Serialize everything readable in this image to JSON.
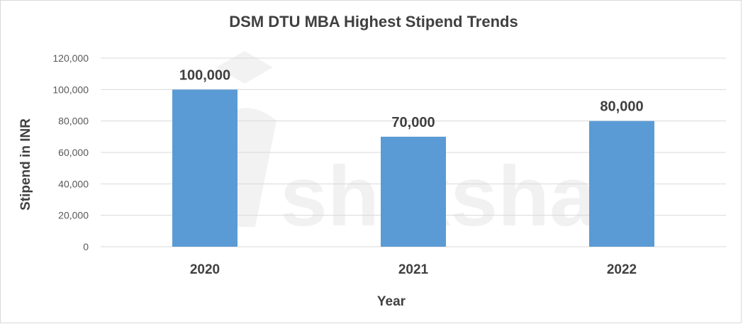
{
  "chart_data": {
    "type": "bar",
    "title": "DSM DTU MBA Highest Stipend Trends",
    "xlabel": "Year",
    "ylabel": "Stipend in INR",
    "categories": [
      "2020",
      "2021",
      "2022"
    ],
    "values": [
      100000,
      70000,
      80000
    ],
    "data_labels": [
      "100,000",
      "70,000",
      "80,000"
    ],
    "ylim": [
      0,
      120000
    ],
    "yticks": [
      0,
      20000,
      40000,
      60000,
      80000,
      100000,
      120000
    ],
    "ytick_labels": [
      "0",
      "20,000",
      "40,000",
      "60,000",
      "80,000",
      "100,000",
      "120,000"
    ],
    "grid": true,
    "legend": "none",
    "colors": {
      "bar": "#5B9BD5",
      "grid": "#D9D9D9",
      "text": "#404040"
    }
  },
  "watermark": {
    "text": "shiksha"
  }
}
